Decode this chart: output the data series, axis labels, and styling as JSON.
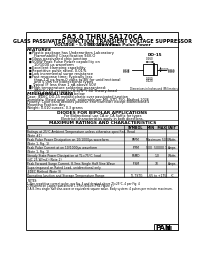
{
  "title1": "SA5.0 THRU SA170CA",
  "title2": "GLASS PASSIVATED JUNCTION TRANSIENT VOLTAGE SUPPRESSOR",
  "title3_left": "VOLTAGE - 5.0 TO 170 Volts",
  "title3_right": "500 Watt Peak Pulse Power",
  "bg_color": "#ffffff",
  "text_color": "#000000",
  "features_title": "FEATURES",
  "feature_items": [
    "Plastic package has Underwriters Laboratory",
    "  Flammability Classification 94V-O",
    "Glass passivated chip junction",
    "500W Peak Pulse Power capability on",
    "  10/1000 μs waveform",
    "Excellent clamping capability",
    "Repetitive pulse rated, 0.01%",
    "Low incremental surge resistance",
    "Fast response time: typically less",
    "  than 1.0 ps from 0 volts to BV for unidirectional",
    "  and 5.0ns for bidirectional types",
    "Typical IF less than 1 nA above 50V",
    "High temperature soldering guaranteed:",
    "  260°C / 10 seconds / 0.375\" / 30 Theory-head",
    "  length/Mini. - 5° Deg. below"
  ],
  "do15_label": "DO-15",
  "dim_note": "Dimensions in Inches and (Millimeters)",
  "mech_title": "MECHANICAL DATA",
  "mech_lines": [
    "Case: JEDEC DO-15 molded plastic over passivated junction",
    "Terminals: Plated axial leads, solderable per MIL-STD-750, Method 2026",
    "Polarity: Color band denotes positive end (cathode) except Bidirectionals",
    "Mounting Position: Any",
    "Weight: 0.010 ounces, 0.3 grams"
  ],
  "diodes_title": "DIODES FOR BIPOLAR APPLICATIONS",
  "diodes_lines": [
    "For Bidirectional use CA or CA Suffix for types",
    "Electrical characteristics apply in both directions."
  ],
  "table_title": "MAXIMUM RATINGS AND CHARACTERISTICS",
  "col_headers": [
    "SYMBOL",
    "MIN   MAX",
    "UNIT"
  ],
  "table_rows": [
    [
      "Ratings at 25°C Ambient Temperature unless otherwise specified. Read",
      "",
      "",
      ""
    ],
    [
      "(Note #1)",
      "",
      "",
      ""
    ],
    [
      "Peak Pulse Power Dissipation on 10/1000μs waveform",
      "PPPM",
      "Maximum 500",
      "Watts"
    ],
    [
      "(Note 1, Fig. 1)",
      "",
      "",
      ""
    ],
    [
      "Peak Pulse Current at on 10/1000μs waveform",
      "IPPM",
      "500  50000 1",
      "Amps"
    ],
    [
      "(Note 1, Fig. 1)",
      "",
      "",
      ""
    ],
    [
      "Steady State Power Dissipation at TL=75°C, load",
      "PSMD",
      "1.0",
      "Watts"
    ],
    [
      "(λJC 25 W/mil) (Note 2)",
      "",
      "",
      ""
    ],
    [
      "Peak Forward Surge Current, 8.3ms Single Half Sine-Wave",
      "IFSM",
      "70",
      "Amps"
    ],
    [
      "Superimposed on Rated Load, unidirectional only",
      "",
      "",
      ""
    ],
    [
      "JEDEC Method (Note 3)",
      "",
      "",
      ""
    ],
    [
      "Operating Junction and Storage Temperature Range",
      "TJ, TSTG",
      "-65 to +175",
      "°C"
    ]
  ],
  "notes": [
    "NOTES:",
    "1.Non-repetitive current pulse, per Fig. 4 and derated above TJ=25°C, 4 per Fig. 4",
    "2.Mounted on Copper pad area of 1.57in²/Silicon²/FR4 Figure 5.",
    "3.A 8.3ms single half sine-wave or equivalent square wave. Body system: 4 pulses per minute maximum."
  ],
  "logo_text": "PAN",
  "logo_suffix": "III"
}
